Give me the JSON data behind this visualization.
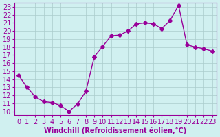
{
  "x": [
    0,
    1,
    2,
    3,
    4,
    5,
    6,
    7,
    8,
    9,
    10,
    11,
    12,
    13,
    14,
    15,
    16,
    17,
    18,
    19,
    20,
    21,
    22,
    23
  ],
  "y": [
    14.5,
    13.0,
    11.8,
    11.2,
    11.1,
    10.7,
    10.0,
    10.9,
    12.5,
    16.8,
    18.1,
    19.4,
    19.5,
    20.0,
    20.9,
    21.0,
    20.9,
    20.3,
    21.3,
    23.2,
    18.3,
    18.0,
    17.8,
    17.5
  ],
  "line_color": "#990099",
  "marker": "D",
  "marker_size": 3,
  "background_color": "#d0f0f0",
  "grid_color": "#aacccc",
  "xlabel": "Windchill (Refroidissement éolien,°C)",
  "xlabel_color": "#990099",
  "ylabel_ticks": [
    10,
    11,
    12,
    13,
    14,
    15,
    16,
    17,
    18,
    19,
    20,
    21,
    22,
    23
  ],
  "xtick_labels": [
    "0",
    "1",
    "2",
    "3",
    "4",
    "5",
    "6",
    "7",
    "8",
    "9",
    "10",
    "11",
    "12",
    "13",
    "14",
    "15",
    "16",
    "17",
    "18",
    "19",
    "20",
    "21",
    "22",
    "23"
  ],
  "xlim": [
    -0.5,
    23.5
  ],
  "ylim": [
    9.5,
    23.5
  ],
  "tick_color": "#990099",
  "axis_color": "#990099",
  "font_size": 7
}
